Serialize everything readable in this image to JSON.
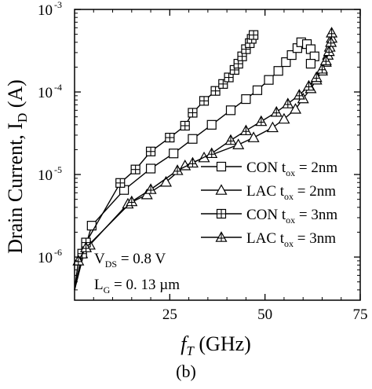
{
  "chart_data": {
    "type": "line",
    "xlabel_italic": "f",
    "xlabel_sub": "T",
    "xlabel_rest": " (GHz)",
    "ylabel_main": "Drain Current, I",
    "ylabel_sub": "D",
    "ylabel_unit": " (A)",
    "xlim": [
      0,
      75
    ],
    "ylim": [
      3e-07,
      0.001
    ],
    "yscale": "log",
    "xticks": [
      25,
      50,
      75
    ],
    "yticks": [
      {
        "value": 1e-06,
        "base": "10",
        "exp": "-6"
      },
      {
        "value": 1e-05,
        "base": "10",
        "exp": "-5"
      },
      {
        "value": 0.0001,
        "base": "10",
        "exp": "-4"
      },
      {
        "value": 0.001,
        "base": "10",
        "exp": "-3"
      }
    ],
    "legend_position": "right",
    "series": [
      {
        "name": "CON t",
        "name_sub": "ox",
        "name_rest": " = 2nm",
        "marker": "square",
        "points": [
          [
            0,
            4e-07
          ],
          [
            3,
            1.4e-06
          ],
          [
            4.5,
            2.4e-06
          ],
          [
            13,
            6.5e-06
          ],
          [
            20,
            1.18e-05
          ],
          [
            26,
            1.8e-05
          ],
          [
            31,
            2.7e-05
          ],
          [
            36,
            4e-05
          ],
          [
            41,
            6e-05
          ],
          [
            45,
            8.2e-05
          ],
          [
            48,
            0.000105
          ],
          [
            51,
            0.00014
          ],
          [
            53.5,
            0.00018
          ],
          [
            55.5,
            0.00023
          ],
          [
            57,
            0.00028
          ],
          [
            58.5,
            0.00034
          ],
          [
            59.5,
            0.0004
          ],
          [
            61,
            0.00038
          ],
          [
            62,
            0.00033
          ],
          [
            63,
            0.00027
          ],
          [
            62,
            0.00022
          ]
        ]
      },
      {
        "name": "LAC  t",
        "name_sub": "ox",
        "name_rest": " = 2nm",
        "marker": "triangle",
        "points": [
          [
            0,
            4e-07
          ],
          [
            2,
            1.1e-06
          ],
          [
            4,
            1.4e-06
          ],
          [
            14,
            4.4e-06
          ],
          [
            19,
            5.7e-06
          ],
          [
            24,
            8.1e-06
          ],
          [
            29,
            1.28e-05
          ],
          [
            34,
            1.6e-05
          ],
          [
            43,
            2.3e-05
          ],
          [
            47,
            2.8e-05
          ],
          [
            52,
            3.7e-05
          ],
          [
            55,
            4.7e-05
          ],
          [
            58,
            6.2e-05
          ],
          [
            60,
            8.3e-05
          ],
          [
            62,
            0.00011
          ],
          [
            63.5,
            0.00014
          ],
          [
            65,
            0.00018
          ],
          [
            66,
            0.00023
          ],
          [
            66.5,
            0.00028
          ],
          [
            67,
            0.00035
          ],
          [
            67.5,
            0.00045
          ]
        ]
      },
      {
        "name": "CON t",
        "name_sub": "ox",
        "name_rest": " = 3nm",
        "marker": "square-plus",
        "points": [
          [
            0,
            4e-07
          ],
          [
            2,
            1.1e-06
          ],
          [
            3,
            1.5e-06
          ],
          [
            12,
            7.9e-06
          ],
          [
            16,
            1.15e-05
          ],
          [
            20,
            1.9e-05
          ],
          [
            25,
            2.8e-05
          ],
          [
            29,
            3.9e-05
          ],
          [
            31,
            5.6e-05
          ],
          [
            34,
            7.8e-05
          ],
          [
            37,
            0.000103
          ],
          [
            39,
            0.000125
          ],
          [
            40.5,
            0.00015
          ],
          [
            42,
            0.000185
          ],
          [
            43,
            0.00022
          ],
          [
            44,
            0.00027
          ],
          [
            45,
            0.00033
          ],
          [
            46,
            0.00039
          ],
          [
            46.5,
            0.00044
          ],
          [
            47,
            0.00049
          ]
        ]
      },
      {
        "name": "LAC  t",
        "name_sub": "ox",
        "name_rest": " = 3nm",
        "marker": "triangle-plus",
        "points": [
          [
            0,
            4e-07
          ],
          [
            1,
            9e-07
          ],
          [
            3,
            1.3e-06
          ],
          [
            15,
            4.7e-06
          ],
          [
            20,
            6.6e-06
          ],
          [
            27,
            1.12e-05
          ],
          [
            31,
            1.38e-05
          ],
          [
            36,
            1.8e-05
          ],
          [
            41,
            2.6e-05
          ],
          [
            45,
            3.4e-05
          ],
          [
            49,
            4.4e-05
          ],
          [
            53,
            5.7e-05
          ],
          [
            56,
            7.2e-05
          ],
          [
            59,
            9.2e-05
          ],
          [
            61.5,
            0.000118
          ],
          [
            63.5,
            0.00015
          ],
          [
            65,
            0.00019
          ],
          [
            66,
            0.00024
          ],
          [
            66.8,
            0.00031
          ],
          [
            67.3,
            0.0004
          ],
          [
            67.5,
            0.00052
          ]
        ]
      }
    ],
    "annotations": [
      {
        "main": "V",
        "sub": "DS",
        "rest": " = 0.8 V"
      },
      {
        "main": "L",
        "sub": "G",
        "rest": " = 0. 13 µm"
      }
    ]
  },
  "panel_label": "(b)"
}
